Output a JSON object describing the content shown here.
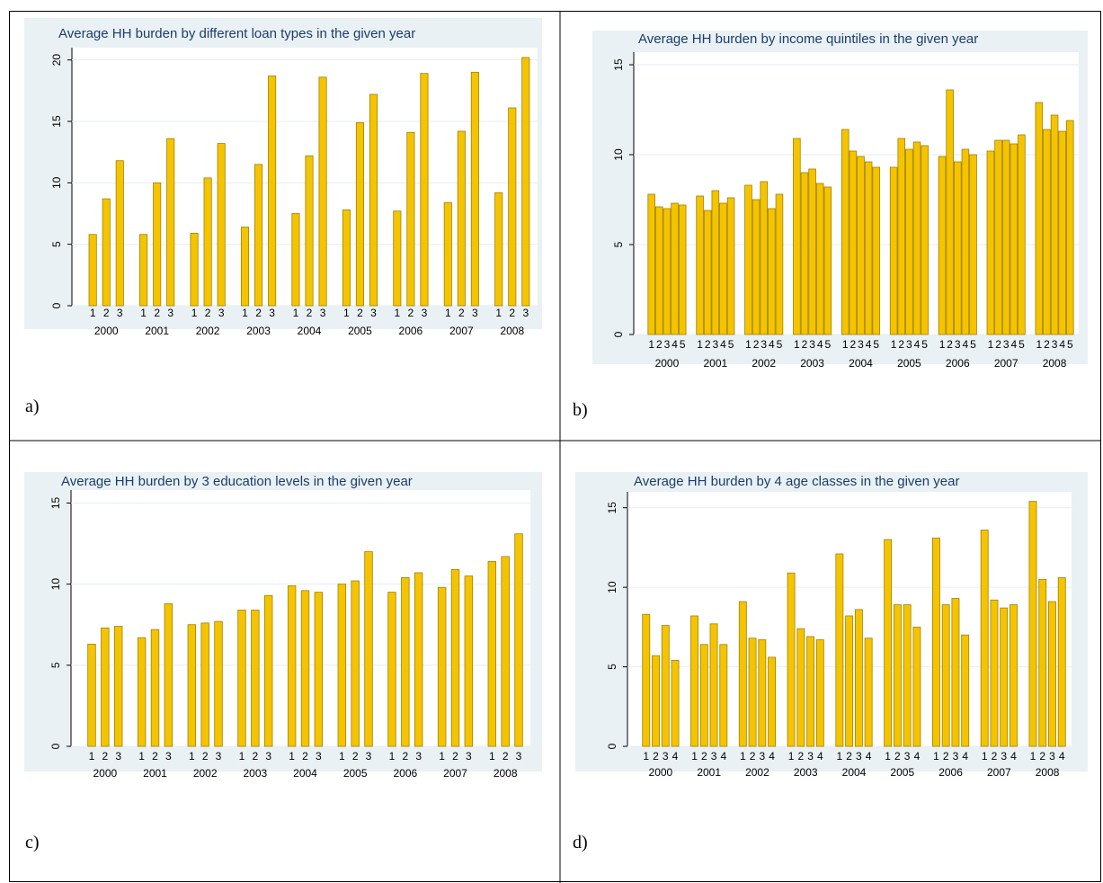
{
  "chart_data": [
    {
      "type": "bar",
      "label": "a)",
      "title": "Average HH burden by different loan types in the given year",
      "categories": [
        "2000",
        "2001",
        "2002",
        "2003",
        "2004",
        "2005",
        "2006",
        "2007",
        "2008"
      ],
      "subcategories": [
        "1",
        "2",
        "3"
      ],
      "values": [
        [
          5.8,
          8.7,
          11.8
        ],
        [
          5.8,
          10.0,
          13.6
        ],
        [
          5.9,
          10.4,
          13.2
        ],
        [
          6.4,
          11.5,
          18.7
        ],
        [
          7.5,
          12.2,
          18.6
        ],
        [
          7.8,
          14.9,
          17.2
        ],
        [
          7.7,
          14.1,
          18.9
        ],
        [
          8.4,
          14.2,
          19.0
        ],
        [
          9.2,
          16.1,
          20.2
        ]
      ],
      "color": "#f5c400",
      "ylim": [
        0,
        21
      ],
      "yticks": [
        0,
        5,
        10,
        15,
        20
      ],
      "grid": true
    },
    {
      "type": "bar",
      "label": "b)",
      "title": "Average HH burden by income quintiles in the given year",
      "categories": [
        "2000",
        "2001",
        "2002",
        "2003",
        "2004",
        "2005",
        "2006",
        "2007",
        "2008"
      ],
      "subcategories": [
        "1",
        "2",
        "3",
        "4",
        "5"
      ],
      "values": [
        [
          7.8,
          7.1,
          7.0,
          7.3,
          7.2
        ],
        [
          7.7,
          6.9,
          8.0,
          7.3,
          7.6
        ],
        [
          8.3,
          7.5,
          8.5,
          7.0,
          7.8
        ],
        [
          10.9,
          9.0,
          9.2,
          8.4,
          8.2
        ],
        [
          11.4,
          10.2,
          9.9,
          9.6,
          9.3
        ],
        [
          9.3,
          10.9,
          10.3,
          10.7,
          10.5
        ],
        [
          9.9,
          13.6,
          9.6,
          10.3,
          10.0
        ],
        [
          10.2,
          10.8,
          10.8,
          10.6,
          11.1
        ],
        [
          12.9,
          11.4,
          12.2,
          11.3,
          11.9
        ]
      ],
      "color": "#f5c400",
      "ylim": [
        0,
        15.7
      ],
      "yticks": [
        0,
        5,
        10,
        15
      ],
      "grid": true
    },
    {
      "type": "bar",
      "label": "c)",
      "title": "Average HH burden by 3 education levels in the given year",
      "categories": [
        "2000",
        "2001",
        "2002",
        "2003",
        "2004",
        "2005",
        "2006",
        "2007",
        "2008"
      ],
      "subcategories": [
        "1",
        "2",
        "3"
      ],
      "values": [
        [
          6.3,
          7.3,
          7.4
        ],
        [
          6.7,
          7.2,
          8.8
        ],
        [
          7.5,
          7.6,
          7.7
        ],
        [
          8.4,
          8.4,
          9.3
        ],
        [
          9.9,
          9.6,
          9.5
        ],
        [
          10.0,
          10.2,
          12.0
        ],
        [
          9.5,
          10.4,
          10.7
        ],
        [
          9.8,
          10.9,
          10.5
        ],
        [
          11.4,
          11.7,
          13.1
        ]
      ],
      "color": "#f5c400",
      "ylim": [
        0,
        15.8
      ],
      "yticks": [
        0,
        5,
        10,
        15
      ],
      "grid": true
    },
    {
      "type": "bar",
      "label": "d)",
      "title": "Average HH burden by 4 age classes in the given year",
      "categories": [
        "2000",
        "2001",
        "2002",
        "2003",
        "2004",
        "2005",
        "2006",
        "2007",
        "2008"
      ],
      "subcategories": [
        "1",
        "2",
        "3",
        "4"
      ],
      "values": [
        [
          8.3,
          5.7,
          7.6,
          5.4
        ],
        [
          8.2,
          6.4,
          7.7,
          6.4
        ],
        [
          9.1,
          6.8,
          6.7,
          5.6
        ],
        [
          10.9,
          7.4,
          6.9,
          6.7
        ],
        [
          12.1,
          8.2,
          8.6,
          6.8
        ],
        [
          13.0,
          8.9,
          8.9,
          7.5
        ],
        [
          13.1,
          8.9,
          9.3,
          7.0
        ],
        [
          13.6,
          9.2,
          8.7,
          8.9
        ],
        [
          15.4,
          10.5,
          9.1,
          10.6
        ]
      ],
      "color": "#f5c400",
      "ylim": [
        0,
        16
      ],
      "yticks": [
        0,
        5,
        10,
        15
      ],
      "grid": true
    }
  ]
}
